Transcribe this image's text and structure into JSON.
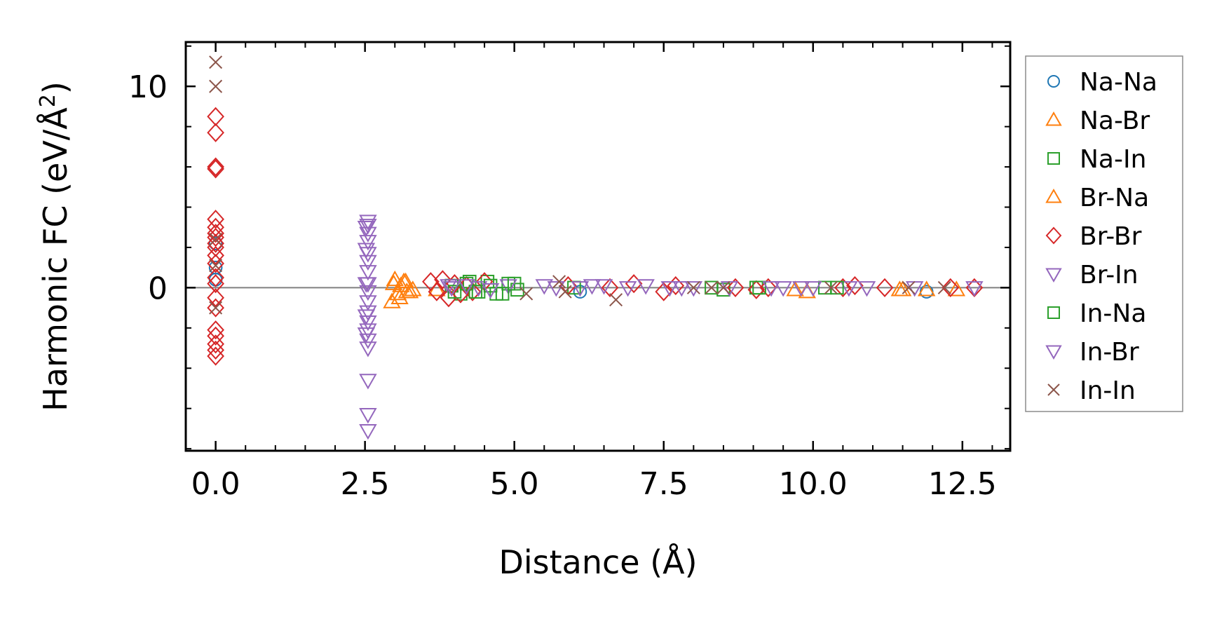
{
  "chart_data": {
    "type": "scatter",
    "title": "",
    "xlabel": "Distance (Å)",
    "ylabel": "Harmonic FC (eV/Å",
    "ylabel_sup": "2",
    "ylabel_tail": ")",
    "xlim": [
      -0.5,
      13.3
    ],
    "ylim": [
      -8.1,
      12.2
    ],
    "xticks": [
      0.0,
      2.5,
      5.0,
      7.5,
      10.0,
      12.5
    ],
    "xtick_labels": [
      "0.0",
      "2.5",
      "5.0",
      "7.5",
      "10.0",
      "12.5"
    ],
    "yticks": [
      0,
      10
    ],
    "ytick_labels": [
      "0",
      "10"
    ],
    "reference_line_y": 0,
    "legend_position": "outside-right",
    "series": [
      {
        "name": "Na-Na",
        "marker": "circle",
        "color": "#1f77b4",
        "x": [
          0,
          0,
          0,
          6.1,
          11.9
        ],
        "y": [
          2.2,
          1.0,
          0.4,
          -0.2,
          -0.2
        ]
      },
      {
        "name": "Na-Br",
        "marker": "triangle-up",
        "color": "#ff7f0e",
        "x": [
          2.95,
          3.0,
          3.05,
          3.1,
          3.15,
          3.2,
          3.3,
          3.7,
          9.9,
          11.45,
          11.9,
          12.4
        ],
        "y": [
          -0.7,
          0.4,
          -0.3,
          0.1,
          0.3,
          -0.2,
          -0.1,
          -0.1,
          -0.2,
          -0.1,
          -0.1,
          -0.1
        ]
      },
      {
        "name": "Na-In",
        "marker": "square",
        "color": "#2ca02c",
        "x": [
          3.95,
          4.1,
          4.25,
          4.4,
          4.55,
          4.7,
          4.9,
          5.05,
          6.0,
          8.5,
          9.05,
          10.2
        ],
        "y": [
          0.1,
          -0.3,
          0.3,
          -0.2,
          0.3,
          -0.3,
          0.2,
          -0.1,
          0.0,
          -0.1,
          0.0,
          0.0
        ]
      },
      {
        "name": "Br-Na",
        "marker": "triangle-up",
        "color": "#ff7f0e",
        "x": [
          2.98,
          3.08,
          3.18,
          3.25,
          9.7,
          11.5
        ],
        "y": [
          0.2,
          -0.5,
          0.3,
          -0.2,
          -0.1,
          -0.1
        ]
      },
      {
        "name": "Br-Br",
        "marker": "diamond",
        "color": "#d62728",
        "x": [
          0,
          0,
          0,
          0,
          0,
          0,
          0,
          0,
          0,
          0,
          0,
          0,
          0,
          0,
          0,
          0,
          0,
          0,
          0,
          0,
          0,
          3.6,
          3.7,
          3.8,
          3.9,
          4.0,
          4.1,
          4.2,
          4.3,
          4.5,
          5.9,
          6.6,
          7.0,
          7.5,
          7.7,
          8.7,
          9.05,
          9.25,
          10.5,
          10.7,
          11.2,
          12.3,
          12.7
        ],
        "y": [
          8.5,
          7.7,
          6.0,
          5.9,
          3.4,
          3.0,
          2.7,
          2.5,
          2.2,
          2.0,
          1.6,
          1.2,
          0.5,
          0.2,
          -0.5,
          -1.0,
          -2.1,
          -2.4,
          -2.8,
          -3.1,
          -3.4,
          0.3,
          -0.2,
          0.4,
          -0.5,
          0.2,
          -0.3,
          0.1,
          -0.2,
          0.3,
          0.1,
          0.0,
          0.2,
          -0.2,
          0.1,
          0.0,
          -0.1,
          0.0,
          0.0,
          0.1,
          0.0,
          0.0,
          0.0
        ]
      },
      {
        "name": "Br-In",
        "marker": "triangle-down",
        "color": "#9467bd",
        "x": [
          2.55,
          2.55,
          2.55,
          2.55,
          2.55,
          2.55,
          2.55,
          2.55,
          2.55,
          2.55,
          2.55,
          2.55,
          2.55,
          2.55,
          2.55,
          2.55,
          2.55,
          2.55,
          3.9,
          4.4,
          4.9,
          5.7,
          6.3,
          7.8,
          8.6,
          9.5,
          10.0,
          10.6,
          11.7,
          12.7
        ],
        "y": [
          3.3,
          3.1,
          2.7,
          2.3,
          1.7,
          1.3,
          0.8,
          0.2,
          -0.2,
          -0.7,
          -1.2,
          -1.7,
          -2.1,
          -2.6,
          -3.0,
          -4.6,
          -6.3,
          -7.1,
          0.1,
          0.0,
          0.1,
          0.0,
          0.1,
          0.0,
          0.0,
          0.0,
          0.0,
          0.0,
          0.0,
          0.0
        ]
      },
      {
        "name": "In-Na",
        "marker": "square",
        "color": "#2ca02c",
        "x": [
          4.0,
          4.2,
          4.35,
          4.6,
          4.8,
          5.0,
          8.3,
          9.1,
          10.4
        ],
        "y": [
          -0.2,
          0.2,
          -0.2,
          0.1,
          -0.3,
          0.2,
          0.0,
          0.0,
          0.0
        ]
      },
      {
        "name": "In-Br",
        "marker": "triangle-down",
        "color": "#9467bd",
        "x": [
          2.52,
          2.52,
          2.52,
          2.52,
          2.52,
          3.95,
          4.2,
          4.6,
          5.5,
          6.1,
          6.5,
          6.9,
          7.2,
          7.6,
          8.0,
          9.3,
          9.8,
          10.9
        ],
        "y": [
          3.0,
          1.9,
          0.2,
          -1.4,
          -2.3,
          0.0,
          0.1,
          -0.1,
          0.1,
          0.0,
          0.1,
          0.0,
          0.1,
          0.0,
          0.0,
          0.0,
          0.0,
          0.0
        ]
      },
      {
        "name": "In-In",
        "marker": "x",
        "color": "#8c564b",
        "x": [
          0,
          0,
          0,
          0,
          0,
          5.2,
          5.75,
          5.85,
          6.7,
          8.0,
          8.3,
          8.5,
          10.3,
          11.6,
          12.2
        ],
        "y": [
          11.2,
          10.0,
          2.4,
          1.1,
          -1.0,
          -0.3,
          0.3,
          -0.2,
          -0.6,
          0.0,
          0.0,
          0.0,
          0.0,
          0.0,
          0.0
        ]
      }
    ]
  }
}
